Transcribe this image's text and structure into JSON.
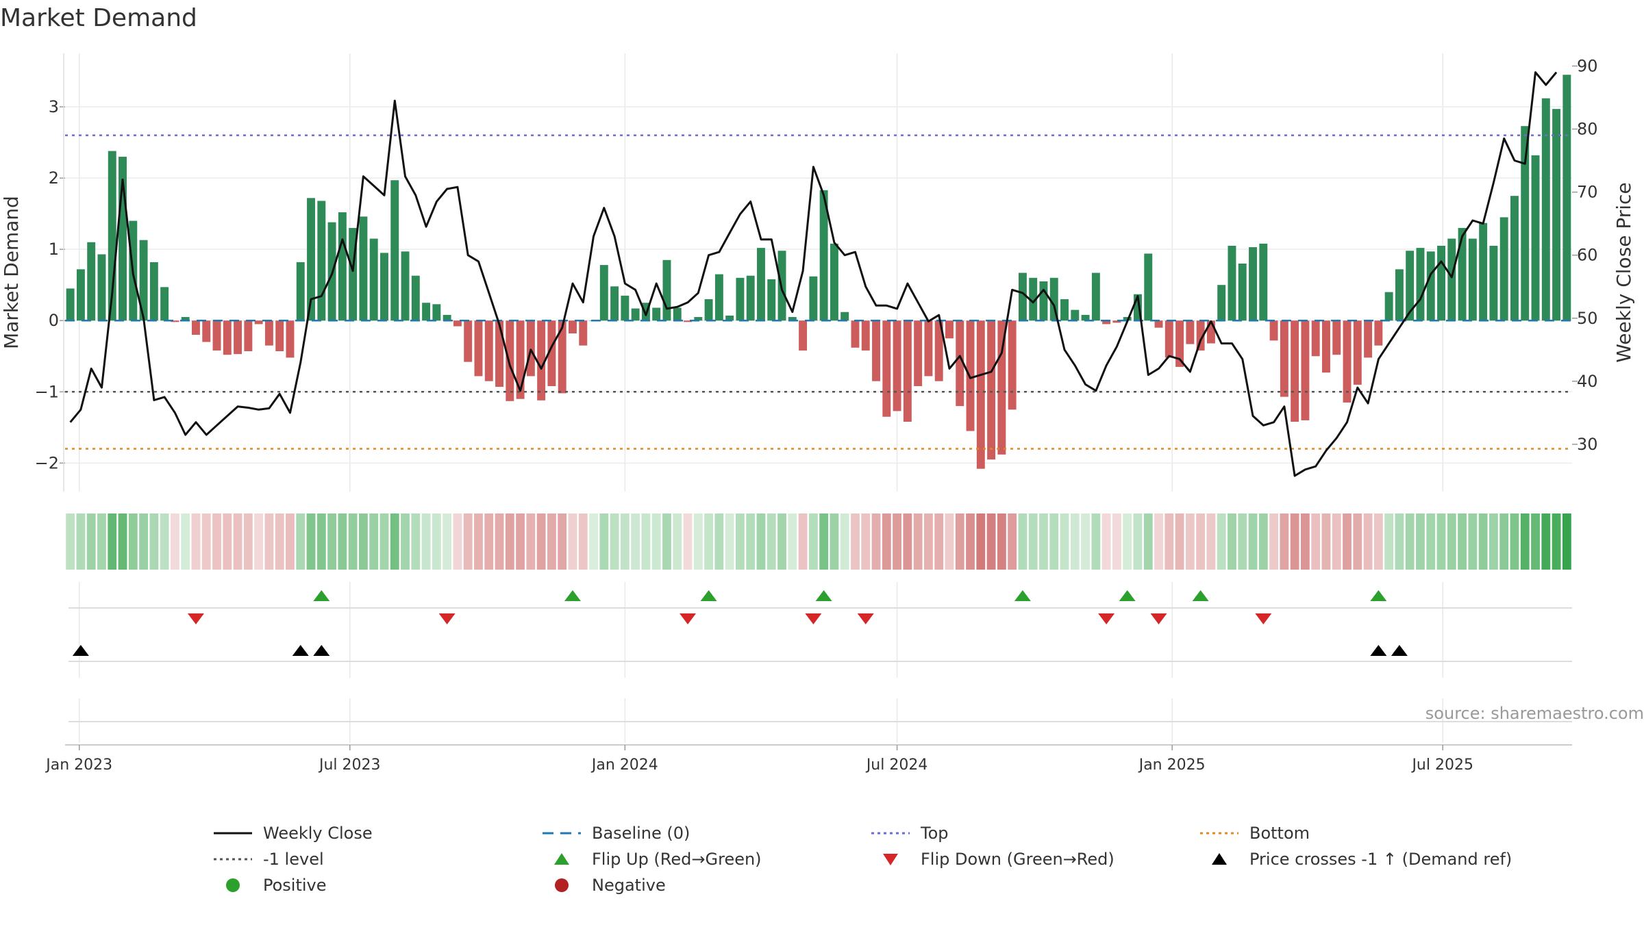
{
  "chart_data": {
    "type": "bar",
    "title": "Market Demand",
    "ylabel_left": "Market Demand",
    "ylabel_right": "Weekly Close Price",
    "source": "source: sharemaestro.com",
    "ylim_left": [
      -2.4,
      3.75
    ],
    "ylim_right": [
      22.5,
      92
    ],
    "yticks_left": [
      "3",
      "2",
      "1",
      "0",
      "−1",
      "−2"
    ],
    "yticks_left_values": [
      3,
      2,
      1,
      0,
      -1,
      -2
    ],
    "yticks_right": [
      "90",
      "80",
      "70",
      "60",
      "50",
      "40",
      "30"
    ],
    "yticks_right_values": [
      90,
      80,
      70,
      60,
      50,
      40,
      30
    ],
    "start_date": "2022-12-26",
    "week_count": 143,
    "xticks": [
      {
        "label": "Jan 2023",
        "date": "2023-01-01"
      },
      {
        "label": "Jul 2023",
        "date": "2023-07-01"
      },
      {
        "label": "Jan 2024",
        "date": "2024-01-01"
      },
      {
        "label": "Jul 2024",
        "date": "2024-07-01"
      },
      {
        "label": "Jan 2025",
        "date": "2025-01-01"
      },
      {
        "label": "Jul 2025",
        "date": "2025-07-01"
      }
    ],
    "reference_lines": [
      {
        "name": "Top",
        "value": 2.6,
        "color": "#6a6ad8",
        "dash": "4,6"
      },
      {
        "name": "-1 level",
        "value": -1.0,
        "color": "#555555",
        "dash": "4,6"
      },
      {
        "name": "Bottom",
        "value": -1.8,
        "color": "#e08a1e",
        "dash": "4,6"
      }
    ],
    "demand": [
      0.45,
      0.72,
      1.1,
      0.93,
      2.38,
      2.3,
      1.4,
      1.13,
      0.82,
      0.47,
      -0.02,
      0.05,
      -0.2,
      -0.3,
      -0.42,
      -0.48,
      -0.47,
      -0.43,
      -0.05,
      -0.35,
      -0.43,
      -0.52,
      0.82,
      1.72,
      1.68,
      1.38,
      1.52,
      1.3,
      1.46,
      1.15,
      0.95,
      1.97,
      0.97,
      0.63,
      0.25,
      0.23,
      0.08,
      -0.08,
      -0.58,
      -0.78,
      -0.85,
      -0.93,
      -1.13,
      -1.1,
      -0.78,
      -1.12,
      -0.92,
      -1.02,
      -0.18,
      -0.35,
      0.0,
      0.78,
      0.48,
      0.35,
      0.17,
      0.25,
      0.18,
      0.85,
      0.18,
      -0.02,
      0.05,
      0.3,
      0.65,
      0.07,
      0.6,
      0.63,
      1.02,
      0.58,
      0.98,
      0.05,
      -0.42,
      0.62,
      1.83,
      1.08,
      0.12,
      -0.38,
      -0.42,
      -0.85,
      -1.35,
      -1.27,
      -1.42,
      -0.92,
      -0.78,
      -0.85,
      -0.25,
      -1.2,
      -1.55,
      -2.08,
      -1.95,
      -1.88,
      -1.25,
      0.67,
      0.6,
      0.55,
      0.6,
      0.3,
      0.15,
      0.08,
      0.67,
      -0.05,
      -0.03,
      0.05,
      0.37,
      0.94,
      -0.1,
      -0.52,
      -0.65,
      -0.33,
      -0.42,
      -0.32,
      0.5,
      1.05,
      0.8,
      1.03,
      1.08,
      -0.28,
      -1.07,
      -1.42,
      -1.4,
      -0.5,
      -0.73,
      -0.48,
      -1.15,
      -0.9,
      -0.52,
      -0.35,
      0.4,
      0.72,
      0.98,
      1.02,
      0.97,
      1.05,
      1.15,
      1.3,
      1.15,
      1.37,
      1.05,
      1.45,
      1.75,
      2.73,
      2.32,
      3.12,
      2.97,
      3.45
    ],
    "weekly_close": [
      33.5,
      35.5,
      42,
      39,
      54,
      72,
      57,
      50,
      37,
      37.5,
      35,
      31.5,
      33.5,
      31.5,
      33,
      34.5,
      36,
      35.8,
      35.5,
      35.7,
      38,
      35,
      43,
      53,
      53.5,
      57,
      62.5,
      57.5,
      72.5,
      71,
      69.5,
      84.5,
      72.5,
      69.5,
      64.5,
      68.5,
      70.5,
      70.8,
      60,
      59,
      54,
      49,
      42.5,
      38.5,
      45,
      42,
      45.5,
      48.5,
      55.5,
      52.5,
      63,
      67.5,
      63,
      55.5,
      54.5,
      50.5,
      55.5,
      51.5,
      51.8,
      52.5,
      54,
      60,
      60.5,
      63.5,
      66.5,
      68.5,
      62.5,
      62.5,
      54.5,
      51,
      57.5,
      74,
      69.5,
      62,
      60,
      60.5,
      55,
      52,
      52,
      51.5,
      55.5,
      52.5,
      49.5,
      50.5,
      42,
      44,
      40.5,
      41,
      41.5,
      44.5,
      54.5,
      54,
      52.5,
      54.5,
      52,
      45,
      42.5,
      39.5,
      38.5,
      42.5,
      45.5,
      49.5,
      53.5,
      41,
      42,
      44,
      43.5,
      41.5,
      46.5,
      49.5,
      46,
      46,
      43.5,
      34.5,
      33,
      33.5,
      36,
      25,
      26,
      26.5,
      29,
      31,
      33.5,
      39,
      36.5,
      43.5,
      46,
      48.5,
      51,
      53,
      57,
      59,
      56.5,
      63,
      65.5,
      65,
      71.5,
      78.5,
      75,
      74.5,
      89,
      87,
      89
    ]
  },
  "flip_up": [
    "2023-06-12",
    "2023-11-27",
    "2024-02-26",
    "2024-05-13",
    "2024-09-23",
    "2024-12-02",
    "2025-01-20",
    "2025-05-19"
  ],
  "flip_down": [
    "2023-03-20",
    "2023-09-04",
    "2024-02-12",
    "2024-05-06",
    "2024-06-10",
    "2024-11-18",
    "2024-12-23",
    "2025-03-03"
  ],
  "price_cross": [
    "2023-01-02",
    "2023-05-29",
    "2023-06-12",
    "2025-05-19",
    "2025-06-02"
  ],
  "legend": {
    "weekly_close": "Weekly Close",
    "baseline": "Baseline (0)",
    "top": "Top",
    "bottom": "Bottom",
    "minus1": "-1 level",
    "flip_up": "Flip Up (Red→Green)",
    "flip_down": "Flip Down (Green→Red)",
    "price_cross": "Price crosses -1 ↑ (Demand ref)",
    "positive": "Positive",
    "negative": "Negative"
  },
  "colors": {
    "positive_bar": "#2e8b57",
    "negative_bar": "#cd5c5c",
    "price_line": "#111111",
    "baseline": "#1f77b4",
    "flip_up": "#2ca02c",
    "flip_down": "#d62728",
    "price_cross": "#000000",
    "positive_dot": "#2ca02c",
    "negative_dot": "#b22222"
  }
}
